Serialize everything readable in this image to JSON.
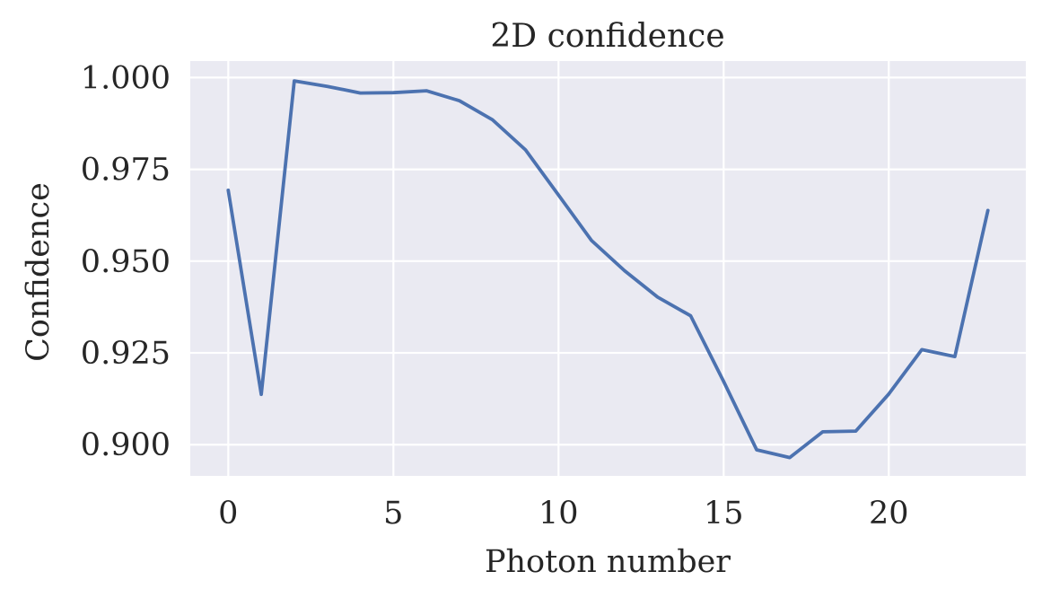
{
  "chart_data": {
    "type": "line",
    "title": "2D confidence",
    "xlabel": "Photon number",
    "ylabel": "Confidence",
    "xlim": [
      -1.15,
      24.15
    ],
    "ylim": [
      0.8915,
      1.0045
    ],
    "x_ticks": [
      0,
      5,
      10,
      15,
      20
    ],
    "x_tick_labels": [
      "0",
      "5",
      "10",
      "15",
      "20"
    ],
    "y_ticks": [
      0.9,
      0.925,
      0.95,
      0.975,
      1.0
    ],
    "y_tick_labels": [
      "0.900",
      "0.925",
      "0.950",
      "0.975",
      "1.000"
    ],
    "grid": true,
    "background_color": "#EAEAF2",
    "grid_color": "#FFFFFF",
    "series": [
      {
        "color": "#4C72B0",
        "x": [
          0,
          1,
          2,
          3,
          4,
          5,
          6,
          7,
          8,
          9,
          10,
          11,
          12,
          13,
          14,
          15,
          16,
          17,
          18,
          19,
          20,
          21,
          22,
          23
        ],
        "y": [
          0.9693,
          0.9137,
          0.9991,
          0.9976,
          0.9958,
          0.9959,
          0.9964,
          0.9937,
          0.9885,
          0.9803,
          0.968,
          0.9556,
          0.9474,
          0.9402,
          0.9351,
          0.9172,
          0.8986,
          0.8965,
          0.9035,
          0.9037,
          0.9138,
          0.9259,
          0.924,
          0.9638
        ]
      }
    ]
  }
}
